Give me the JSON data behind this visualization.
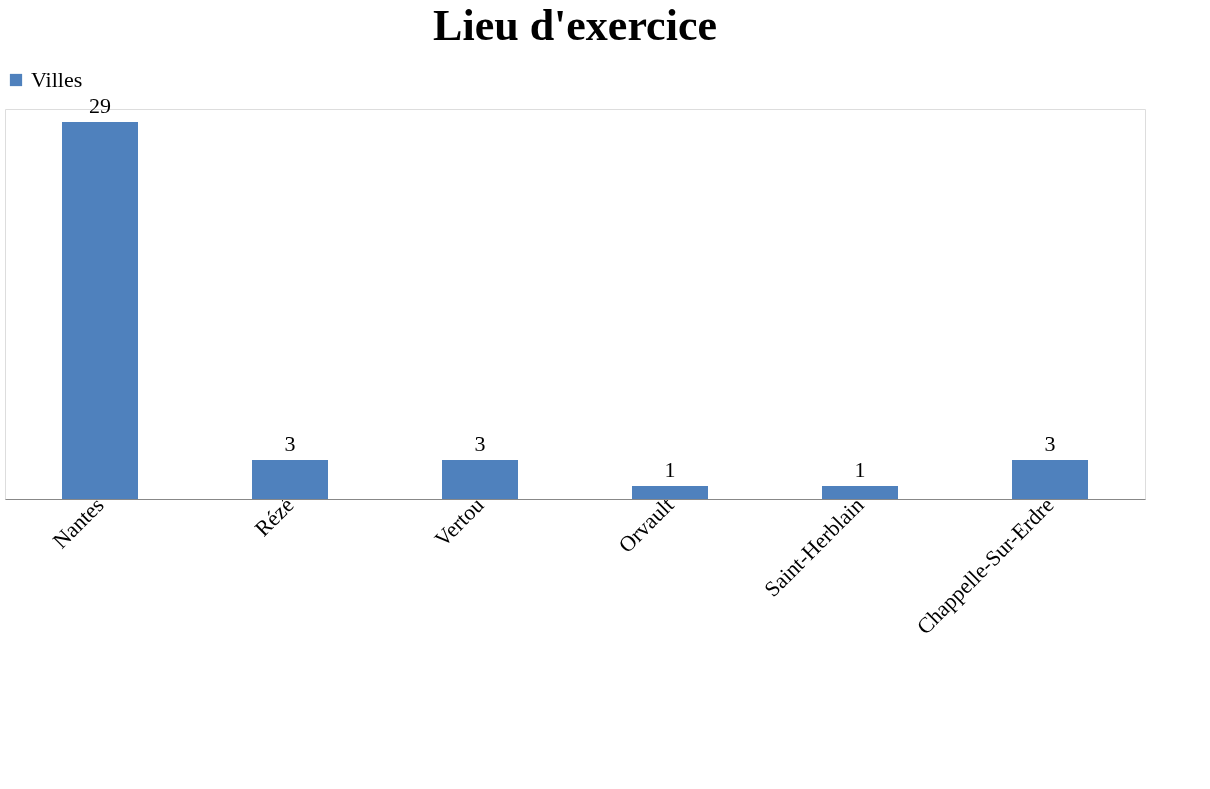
{
  "chart_data": {
    "type": "bar",
    "title": "Lieu d'exercice",
    "categories": [
      "Nantes",
      "Rézé",
      "Vertou",
      "Orvault",
      "Saint-Herblain",
      "Chappelle-Sur-Erdre"
    ],
    "series": [
      {
        "name": "Villes",
        "color": "#4f81bd",
        "values": [
          29,
          3,
          3,
          1,
          1,
          3
        ]
      }
    ],
    "data_labels": true,
    "legend": "top",
    "grid": false,
    "tick_labels": "x"
  }
}
